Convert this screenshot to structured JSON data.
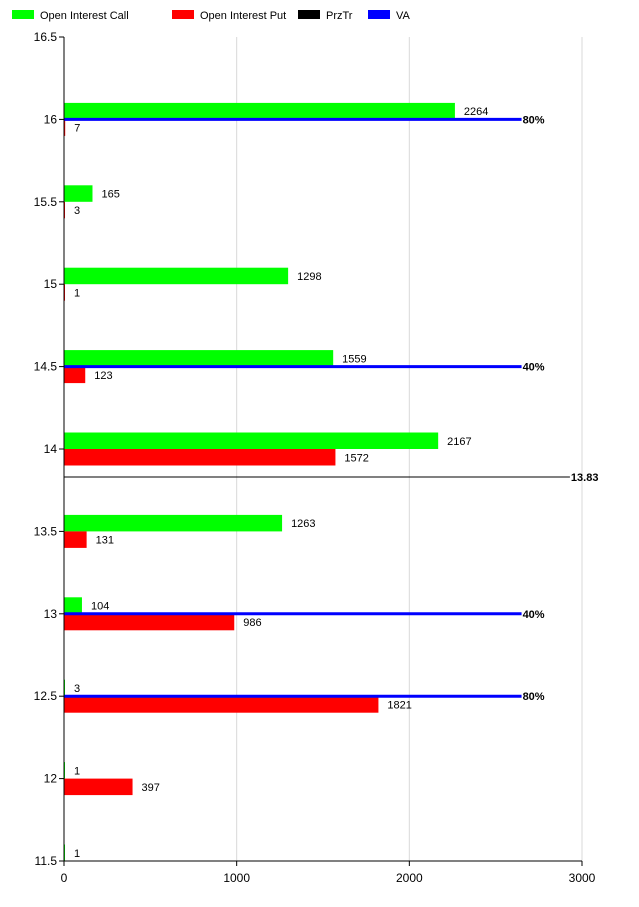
{
  "chart_data": {
    "type": "bar",
    "orientation": "horizontal",
    "legend_position": "top-left",
    "legend": [
      {
        "label": "Open Interest Call",
        "color": "#00ff00"
      },
      {
        "label": "Open Interest Put",
        "color": "#ff0000"
      },
      {
        "label": "PrzTr",
        "color": "#000000"
      },
      {
        "label": "VA",
        "color": "#0000ff"
      }
    ],
    "y_ticks": [
      "16.5",
      "16",
      "15.5",
      "15",
      "14.5",
      "14",
      "13.5",
      "13",
      "12.5",
      "12",
      "11.5"
    ],
    "x_ticks": [
      "0",
      "1000",
      "2000",
      "3000"
    ],
    "xlim": [
      0,
      3000
    ],
    "ylim": [
      11.5,
      16.5
    ],
    "grid": "vertical",
    "categories": [
      16,
      15.5,
      15,
      14.5,
      14,
      13.5,
      13,
      12.5,
      12,
      11.5
    ],
    "series": [
      {
        "name": "Open Interest Call",
        "color": "#00ff00",
        "values": [
          2264,
          165,
          1298,
          1559,
          2167,
          1263,
          104,
          3,
          1,
          1
        ]
      },
      {
        "name": "Open Interest Put",
        "color": "#ff0000",
        "values": [
          7,
          3,
          1,
          123,
          1572,
          131,
          986,
          1821,
          397,
          null
        ]
      }
    ],
    "value_labels": {
      "call": [
        "2264",
        "165",
        "1298",
        "1559",
        "2167",
        "1263",
        "104",
        "3",
        "1",
        "1"
      ],
      "put": [
        "7",
        "3",
        "1",
        "123",
        "1572",
        "131",
        "986",
        "1821",
        "397",
        ""
      ]
    },
    "reference_lines": [
      {
        "series": "VA",
        "y": 16,
        "x_end": 2650,
        "label": "80%",
        "color": "#0000ff"
      },
      {
        "series": "VA",
        "y": 14.5,
        "x_end": 2650,
        "label": "40%",
        "color": "#0000ff"
      },
      {
        "series": "PrzTr",
        "y": 13.83,
        "x_end": 2930,
        "label": "13.83",
        "color": "#000000"
      },
      {
        "series": "VA",
        "y": 13,
        "x_end": 2650,
        "label": "40%",
        "color": "#0000ff"
      },
      {
        "series": "VA",
        "y": 12.5,
        "x_end": 2650,
        "label": "80%",
        "color": "#0000ff"
      }
    ]
  }
}
